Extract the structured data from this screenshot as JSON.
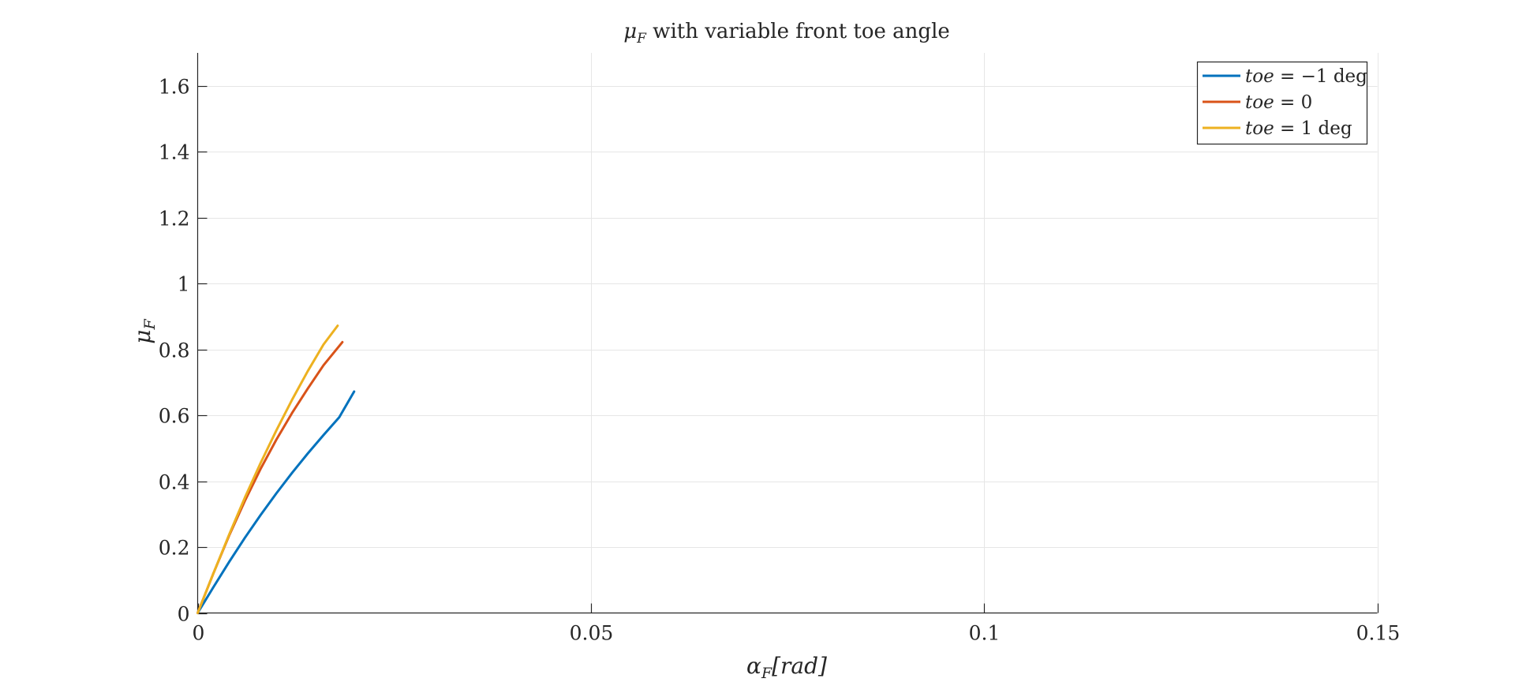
{
  "chart_data": {
    "type": "line",
    "title": "μF with variable front toe angle",
    "title_main": "μ",
    "title_sub": "F",
    "title_rest": " with variable front toe angle",
    "xlabel": "αF[rad]",
    "xlabel_main": "α",
    "xlabel_sub": "F",
    "xlabel_rest": "[rad]",
    "ylabel": "μF",
    "ylabel_main": "μ",
    "ylabel_sub": "F",
    "xlim": [
      0,
      0.15
    ],
    "ylim": [
      0,
      1.7
    ],
    "xticks": [
      0,
      0.05,
      0.1,
      0.15
    ],
    "xtick_labels": [
      "0",
      "0.05",
      "0.1",
      "0.15"
    ],
    "yticks": [
      0,
      0.2,
      0.4,
      0.6,
      0.8,
      1,
      1.2,
      1.4,
      1.6
    ],
    "ytick_labels": [
      "0",
      "0.2",
      "0.4",
      "0.6",
      "0.8",
      "1",
      "1.2",
      "1.4",
      "1.6"
    ],
    "grid": true,
    "legend_position": "top-right",
    "series": [
      {
        "name": "toe = −1 deg",
        "legend_var": "toe",
        "legend_rest": " = −1 deg",
        "color": "#0072BD",
        "x": [
          0,
          0.002,
          0.004,
          0.006,
          0.008,
          0.01,
          0.012,
          0.014,
          0.016,
          0.018,
          0.0199
        ],
        "y": [
          0,
          0.078,
          0.155,
          0.228,
          0.297,
          0.363,
          0.425,
          0.484,
          0.54,
          0.594,
          0.672
        ]
      },
      {
        "name": "toe = 0",
        "legend_var": "toe",
        "legend_rest": " = 0",
        "color": "#D95319",
        "x": [
          0,
          0.002,
          0.004,
          0.006,
          0.008,
          0.01,
          0.012,
          0.014,
          0.016,
          0.0184
        ],
        "y": [
          0,
          0.12,
          0.235,
          0.34,
          0.437,
          0.526,
          0.607,
          0.681,
          0.752,
          0.822
        ]
      },
      {
        "name": "toe = 1 deg",
        "legend_var": "toe",
        "legend_rest": " = 1 deg",
        "color": "#EDB120",
        "x": [
          0,
          0.002,
          0.004,
          0.006,
          0.008,
          0.01,
          0.012,
          0.014,
          0.016,
          0.0178
        ],
        "y": [
          0,
          0.12,
          0.238,
          0.35,
          0.455,
          0.554,
          0.647,
          0.734,
          0.815,
          0.872
        ]
      }
    ]
  }
}
